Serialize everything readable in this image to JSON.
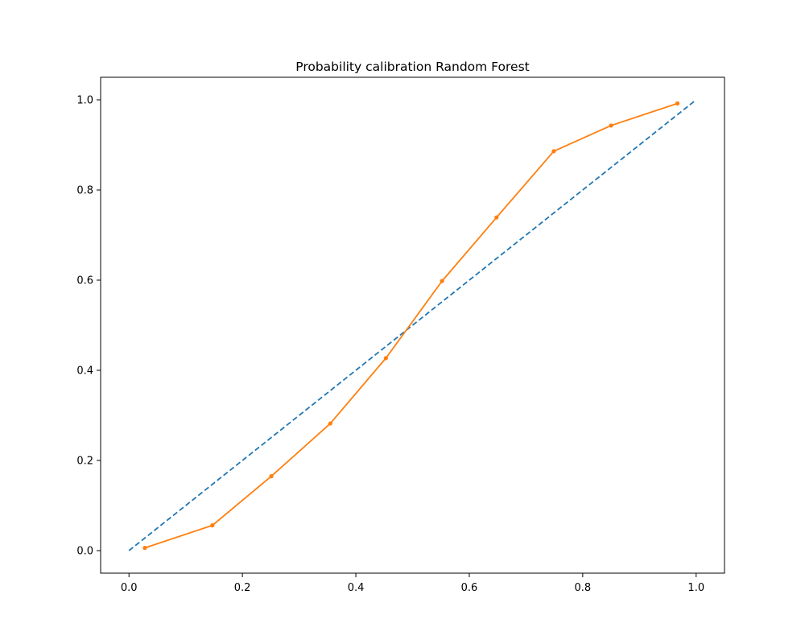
{
  "chart_data": {
    "type": "line",
    "title": "Probability calibration Random Forest",
    "xlabel": "",
    "ylabel": "",
    "xlim": [
      -0.05,
      1.05
    ],
    "ylim": [
      -0.05,
      1.05
    ],
    "x_ticks": [
      "0.0",
      "0.2",
      "0.4",
      "0.6",
      "0.8",
      "1.0"
    ],
    "y_ticks": [
      "0.0",
      "0.2",
      "0.4",
      "0.6",
      "0.8",
      "1.0"
    ],
    "grid": false,
    "series": [
      {
        "style": "dashed",
        "color": "#1f77b4",
        "x": [
          0.0,
          1.0
        ],
        "y": [
          0.0,
          1.0
        ]
      },
      {
        "style": "solid",
        "marker": "dot",
        "color": "#ff7f0e",
        "x": [
          0.028,
          0.147,
          0.251,
          0.355,
          0.453,
          0.552,
          0.648,
          0.749,
          0.85,
          0.967
        ],
        "y": [
          0.006,
          0.056,
          0.165,
          0.282,
          0.427,
          0.598,
          0.739,
          0.886,
          0.943,
          0.992
        ]
      }
    ]
  }
}
